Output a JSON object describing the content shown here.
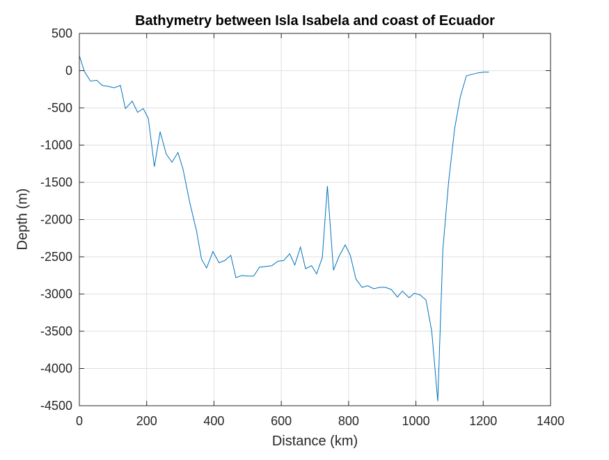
{
  "chart_data": {
    "type": "line",
    "title": "Bathymetry between Isla Isabela and coast of Ecuador",
    "xlabel": "Distance (km)",
    "ylabel": "Depth (m)",
    "xlim": [
      0,
      1400
    ],
    "ylim": [
      -4500,
      500
    ],
    "xticks": [
      0,
      200,
      400,
      600,
      800,
      1000,
      1200,
      1400
    ],
    "yticks": [
      500,
      0,
      -500,
      -1000,
      -1500,
      -2000,
      -2500,
      -3000,
      -3500,
      -4000,
      -4500
    ],
    "grid": true,
    "line_color": "#0072BD",
    "series": [
      {
        "x": [
          0,
          15,
          33,
          52,
          68,
          85,
          103,
          122,
          137,
          157,
          173,
          190,
          205,
          223,
          240,
          258,
          275,
          293,
          308,
          328,
          348,
          363,
          378,
          397,
          415,
          432,
          450,
          465,
          483,
          500,
          518,
          535,
          555,
          572,
          590,
          607,
          625,
          640,
          657,
          672,
          690,
          705,
          722,
          737,
          755,
          772,
          790,
          805,
          822,
          840,
          857,
          875,
          892,
          910,
          927,
          945,
          960,
          980,
          995,
          1012,
          1030,
          1047,
          1065,
          1080,
          1097,
          1115,
          1132,
          1150,
          1167,
          1185,
          1202,
          1217
        ],
        "y": [
          200,
          -10,
          -140,
          -130,
          -200,
          -210,
          -230,
          -200,
          -510,
          -410,
          -560,
          -510,
          -640,
          -1290,
          -820,
          -1120,
          -1230,
          -1100,
          -1320,
          -1770,
          -2150,
          -2530,
          -2650,
          -2430,
          -2580,
          -2550,
          -2480,
          -2780,
          -2750,
          -2760,
          -2760,
          -2640,
          -2630,
          -2620,
          -2560,
          -2550,
          -2460,
          -2610,
          -2370,
          -2660,
          -2620,
          -2730,
          -2510,
          -1550,
          -2680,
          -2490,
          -2340,
          -2480,
          -2800,
          -2910,
          -2890,
          -2930,
          -2910,
          -2910,
          -2940,
          -3040,
          -2960,
          -3050,
          -2990,
          -3010,
          -3080,
          -3500,
          -4440,
          -2400,
          -1500,
          -780,
          -350,
          -70,
          -50,
          -30,
          -20,
          -20
        ]
      }
    ]
  }
}
